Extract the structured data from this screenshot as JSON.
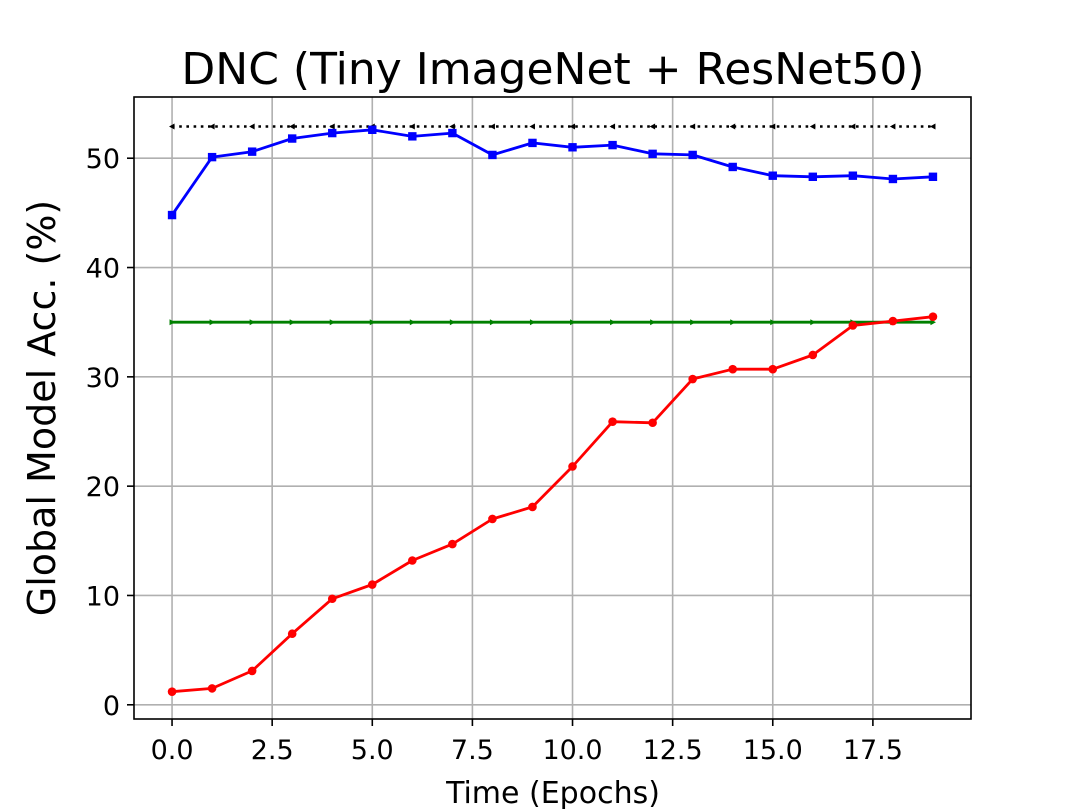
{
  "chart_data": {
    "type": "line",
    "title": "DNC (Tiny ImageNet + ResNet50)",
    "xlabel": "Time (Epochs)",
    "ylabel": "Global Model Acc. (%)",
    "xlim": [
      -0.95,
      19.95
    ],
    "ylim": [
      -1.3,
      55.6
    ],
    "xticks": [
      0.0,
      2.5,
      5.0,
      7.5,
      10.0,
      12.5,
      15.0,
      17.5
    ],
    "xtick_labels": [
      "0.0",
      "2.5",
      "5.0",
      "7.5",
      "10.0",
      "12.5",
      "15.0",
      "17.5"
    ],
    "yticks": [
      0,
      10,
      20,
      30,
      40,
      50
    ],
    "ytick_labels": [
      "0",
      "10",
      "20",
      "30",
      "40",
      "50"
    ],
    "grid": true,
    "x": [
      0,
      1,
      2,
      3,
      4,
      5,
      6,
      7,
      8,
      9,
      10,
      11,
      12,
      13,
      14,
      15,
      16,
      17,
      18,
      19
    ],
    "series": [
      {
        "color": "#000000",
        "style": "dotted",
        "marker": "triangle-left",
        "values": [
          52.9,
          52.9,
          52.9,
          52.9,
          52.9,
          52.9,
          52.9,
          52.9,
          52.9,
          52.9,
          52.9,
          52.9,
          52.9,
          52.9,
          52.9,
          52.9,
          52.9,
          52.9,
          52.9,
          52.9
        ]
      },
      {
        "color": "#0000ff",
        "style": "solid",
        "marker": "square",
        "values": [
          44.8,
          50.1,
          50.6,
          51.8,
          52.3,
          52.6,
          52.0,
          52.3,
          50.3,
          51.4,
          51.0,
          51.2,
          50.4,
          50.3,
          49.2,
          48.4,
          48.3,
          48.4,
          48.1,
          48.3
        ]
      },
      {
        "color": "#008000",
        "style": "solid",
        "marker": "triangle-right",
        "values": [
          35.0,
          35.0,
          35.0,
          35.0,
          35.0,
          35.0,
          35.0,
          35.0,
          35.0,
          35.0,
          35.0,
          35.0,
          35.0,
          35.0,
          35.0,
          35.0,
          35.0,
          35.0,
          35.0,
          35.0
        ]
      },
      {
        "color": "#ff0000",
        "style": "solid",
        "marker": "circle",
        "values": [
          1.2,
          1.5,
          3.1,
          6.5,
          9.7,
          11.0,
          13.2,
          14.7,
          17.0,
          18.1,
          21.8,
          25.9,
          25.8,
          29.8,
          30.7,
          30.7,
          32.0,
          34.7,
          35.1,
          35.5
        ]
      }
    ]
  }
}
